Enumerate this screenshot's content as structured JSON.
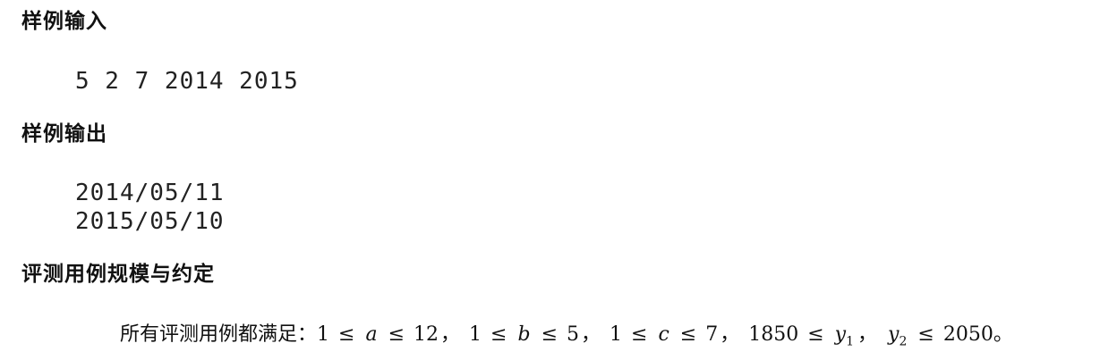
{
  "sample_input": {
    "heading": "样例输入",
    "lines": [
      "5 2 7 2014 2015"
    ]
  },
  "sample_output": {
    "heading": "样例输出",
    "lines": [
      "2014/05/11",
      "2015/05/10"
    ]
  },
  "constraints": {
    "heading": "评测用例规模与约定",
    "prefix": "所有评测用例都满足：",
    "leq": "≤",
    "sep": "，",
    "end": "。",
    "a_lo": "1",
    "a": "a",
    "a_hi": "12",
    "b_lo": "1",
    "b": "b",
    "b_hi": "5",
    "c_lo": "1",
    "c": "c",
    "c_hi": "7",
    "y_lo": "1850",
    "y": "y",
    "y1_sub": "1",
    "y2_sub": "2",
    "y_hi": "2050"
  }
}
